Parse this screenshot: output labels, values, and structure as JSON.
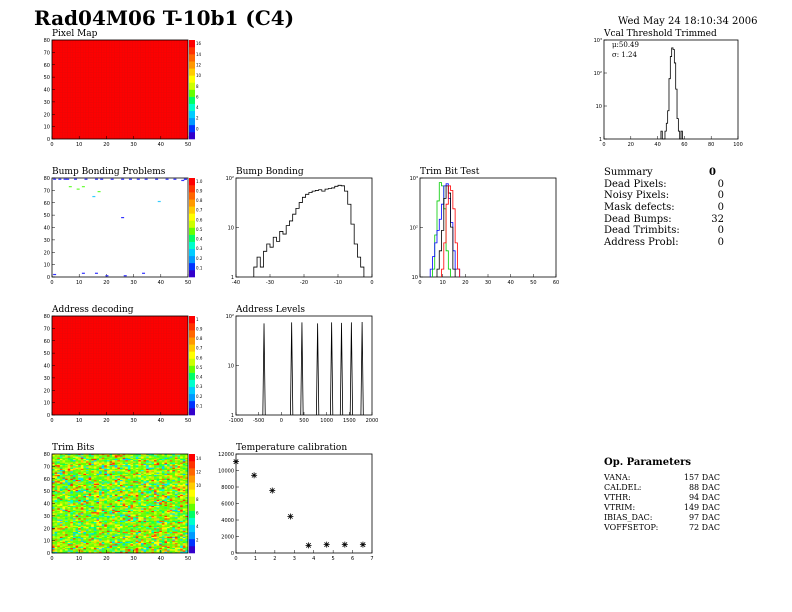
{
  "header": {
    "title": "Rad04M06 T-10b1 (C4)",
    "date": "Wed May 24 18:10:34 2006"
  },
  "colors": {
    "red": "#ff0000",
    "blue": "#0000ff",
    "green": "#00cc00",
    "black": "#000000"
  },
  "panels": {
    "pixel_map": {
      "title": "Pixel Map"
    },
    "vcal": {
      "title": "Vcal Threshold Trimmed",
      "mean_label": "μ:50.49",
      "sigma_label": "σ: 1.24"
    },
    "bump_problems": {
      "title": "Bump Bonding Problems"
    },
    "bump_bonding": {
      "title": "Bump Bonding"
    },
    "trim_bit_test": {
      "title": "Trim Bit Test"
    },
    "address_decoding": {
      "title": "Address decoding"
    },
    "address_levels": {
      "title": "Address Levels"
    },
    "trim_bits": {
      "title": "Trim Bits"
    },
    "temperature": {
      "title": "Temperature calibration"
    }
  },
  "summary": {
    "title": "Summary",
    "total": "0",
    "rows": [
      {
        "label": "Dead Pixels:",
        "value": "0"
      },
      {
        "label": "Noisy Pixels:",
        "value": "0"
      },
      {
        "label": "Mask defects:",
        "value": "0"
      },
      {
        "label": "Dead Bumps:",
        "value": "32"
      },
      {
        "label": "Dead Trimbits:",
        "value": "0"
      },
      {
        "label": "Address Probl:",
        "value": "0"
      }
    ]
  },
  "op_parameters": {
    "title": "Op. Parameters",
    "rows": [
      {
        "label": "VANA:",
        "value": "157 DAC"
      },
      {
        "label": "CALDEL:",
        "value": "88 DAC"
      },
      {
        "label": "VTHR:",
        "value": "94 DAC"
      },
      {
        "label": "VTRIM:",
        "value": "149 DAC"
      },
      {
        "label": "IBIAS_DAC:",
        "value": "97 DAC"
      },
      {
        "label": "VOFFSETOP:",
        "value": "72 DAC"
      }
    ]
  },
  "chart_data": [
    {
      "id": "pixel_map",
      "type": "heatmap",
      "title": "Pixel Map",
      "x_ticks": [
        "0",
        "10",
        "20",
        "30",
        "40",
        "50"
      ],
      "y_ticks": [
        "0",
        "10",
        "20",
        "30",
        "40",
        "50",
        "60",
        "70",
        "80"
      ],
      "z_ticks": [
        "0",
        "2",
        "4",
        "6",
        "8",
        "10",
        "12",
        "14",
        "16"
      ],
      "fill": "uniform",
      "xlim": [
        0,
        52
      ],
      "ylim": [
        0,
        80
      ]
    },
    {
      "id": "vcal",
      "type": "line",
      "title": "Vcal Threshold Trimmed",
      "log_y": true,
      "x_ticks": [
        "0",
        "20",
        "40",
        "60",
        "80",
        "100"
      ],
      "y_ticks": [
        "1",
        "10",
        "10²",
        "10³"
      ],
      "xlim": [
        0,
        100
      ],
      "ylim": [
        0.5,
        3000
      ],
      "x": [
        43,
        44,
        45,
        46,
        47,
        48,
        49,
        50,
        51,
        52,
        53,
        54,
        55,
        56,
        57,
        58,
        59
      ],
      "y": [
        1,
        0,
        0,
        1,
        2,
        6,
        100,
        700,
        1500,
        1300,
        400,
        40,
        3,
        1,
        0,
        1,
        0
      ]
    },
    {
      "id": "bump_problems",
      "type": "scatter",
      "title": "Bump Bonding Problems",
      "x_ticks": [
        "0",
        "10",
        "20",
        "30",
        "40",
        "50"
      ],
      "y_ticks": [
        "0",
        "10",
        "20",
        "30",
        "40",
        "50",
        "60",
        "70",
        "80"
      ],
      "z_ticks": [
        "0.1",
        "0.2",
        "0.3",
        "0.4",
        "0.5",
        "0.6",
        "0.7",
        "0.8",
        "0.9",
        "1.0"
      ],
      "xlim": [
        0,
        52
      ],
      "ylim": [
        0,
        80
      ],
      "points": [
        [
          1,
          79
        ],
        [
          3,
          79
        ],
        [
          6,
          79
        ],
        [
          9,
          79
        ],
        [
          13,
          79
        ],
        [
          19,
          79
        ],
        [
          23,
          79
        ],
        [
          30,
          79
        ],
        [
          36,
          79
        ],
        [
          40,
          79
        ],
        [
          44,
          79
        ],
        [
          47,
          79
        ],
        [
          51,
          79
        ],
        [
          50,
          78
        ],
        [
          5,
          79
        ],
        [
          27,
          79
        ],
        [
          17,
          79
        ],
        [
          33,
          79
        ],
        [
          7,
          73
        ],
        [
          12,
          73
        ],
        [
          10,
          71
        ],
        [
          18,
          69
        ],
        [
          16,
          65
        ],
        [
          41,
          61
        ],
        [
          27,
          48
        ],
        [
          51,
          79
        ],
        [
          1,
          2
        ],
        [
          12,
          3
        ],
        [
          17,
          3
        ],
        [
          21,
          1
        ],
        [
          28,
          1
        ],
        [
          35,
          3
        ]
      ]
    },
    {
      "id": "bump_bonding",
      "type": "line",
      "title": "Bump Bonding",
      "log_y": true,
      "x_ticks": [
        "-40",
        "-30",
        "-20",
        "-10",
        "0"
      ],
      "y_ticks": [
        "1",
        "10",
        "10²"
      ],
      "xlim": [
        -40,
        2
      ],
      "ylim": [
        0.5,
        500
      ],
      "x": [
        -34,
        -33,
        -32,
        -31,
        -30,
        -29,
        -28,
        -27,
        -26,
        -25,
        -24,
        -23,
        -22,
        -21,
        -20,
        -19,
        -18,
        -17,
        -16,
        -15,
        -14,
        -13,
        -12,
        -11,
        -10,
        -9,
        -8,
        -7,
        -6,
        -5,
        -4,
        -3,
        -2,
        -1
      ],
      "y": [
        1,
        2,
        1,
        3,
        5,
        4,
        8,
        6,
        12,
        10,
        18,
        25,
        40,
        60,
        90,
        130,
        160,
        180,
        200,
        210,
        220,
        200,
        230,
        240,
        250,
        280,
        300,
        290,
        200,
        80,
        20,
        5,
        2,
        1
      ]
    },
    {
      "id": "trim_bit_test",
      "type": "line",
      "title": "Trim Bit Test",
      "log_y": true,
      "x_ticks": [
        "0",
        "10",
        "20",
        "30",
        "40",
        "50",
        "60"
      ],
      "y_ticks": [
        "10",
        "10²",
        "10³"
      ],
      "xlim": [
        0,
        60
      ],
      "ylim": [
        0.5,
        3000
      ],
      "series": [
        {
          "color": "green",
          "x": [
            6,
            7,
            8,
            9,
            10,
            11,
            12,
            13
          ],
          "y": [
            1,
            20,
            400,
            2000,
            1500,
            200,
            5,
            1
          ]
        },
        {
          "color": "blue",
          "x": [
            5,
            6,
            7,
            8,
            9,
            10,
            11,
            12,
            13,
            14,
            15,
            16,
            17
          ],
          "y": [
            1,
            3,
            10,
            30,
            80,
            300,
            1500,
            1800,
            500,
            60,
            5,
            1,
            1
          ]
        },
        {
          "color": "black",
          "x": [
            8,
            9,
            10,
            11,
            12,
            13,
            14,
            15
          ],
          "y": [
            1,
            5,
            30,
            500,
            1500,
            800,
            40,
            1
          ]
        },
        {
          "color": "red",
          "x": [
            10,
            11,
            12,
            13,
            14,
            15,
            16,
            17
          ],
          "y": [
            1,
            10,
            300,
            1500,
            1000,
            200,
            10,
            1
          ]
        }
      ]
    },
    {
      "id": "address_decoding",
      "type": "heatmap",
      "title": "Address decoding",
      "x_ticks": [
        "0",
        "10",
        "20",
        "30",
        "40",
        "50"
      ],
      "y_ticks": [
        "0",
        "10",
        "20",
        "30",
        "40",
        "50",
        "60",
        "70",
        "80"
      ],
      "z_ticks": [
        "0.1",
        "0.2",
        "0.3",
        "0.4",
        "0.5",
        "0.6",
        "0.7",
        "0.8",
        "0.9",
        "1"
      ],
      "fill": "uniform",
      "xlim": [
        0,
        52
      ],
      "ylim": [
        0,
        80
      ]
    },
    {
      "id": "address_levels",
      "type": "line",
      "title": "Address Levels",
      "log_y": true,
      "x_ticks": [
        "-1000",
        "-500",
        "0",
        "500",
        "1000",
        "1500",
        "2000"
      ],
      "y_ticks": [
        "1",
        "10",
        "10²"
      ],
      "xlim": [
        -1300,
        2000
      ],
      "ylim": [
        0.5,
        500
      ],
      "peaks": [
        -620,
        50,
        300,
        680,
        1020,
        1260,
        1500,
        1760
      ],
      "peak_heights": [
        300,
        320,
        320,
        300,
        320,
        310,
        320,
        330
      ]
    },
    {
      "id": "trim_bits",
      "type": "heatmap",
      "title": "Trim Bits",
      "x_ticks": [
        "0",
        "10",
        "20",
        "30",
        "40",
        "50"
      ],
      "y_ticks": [
        "0",
        "10",
        "20",
        "30",
        "40",
        "50",
        "60",
        "70",
        "80"
      ],
      "z_ticks": [
        "2",
        "4",
        "6",
        "8",
        "10",
        "12",
        "14"
      ],
      "fill": "noisy",
      "xlim": [
        0,
        52
      ],
      "ylim": [
        0,
        80
      ]
    },
    {
      "id": "temperature",
      "type": "scatter",
      "title": "Temperature calibration",
      "x_ticks": [
        "0",
        "1",
        "2",
        "3",
        "4",
        "5",
        "6",
        "7"
      ],
      "y_ticks": [
        "0",
        "2000",
        "4000",
        "6000",
        "8000",
        "10000",
        "12000"
      ],
      "xlim": [
        0,
        7.5
      ],
      "ylim": [
        0,
        13000
      ],
      "x": [
        0,
        1,
        2,
        3,
        4,
        5,
        6,
        7
      ],
      "y": [
        12000,
        10200,
        8200,
        4800,
        1000,
        1100,
        1100,
        1100
      ]
    }
  ]
}
